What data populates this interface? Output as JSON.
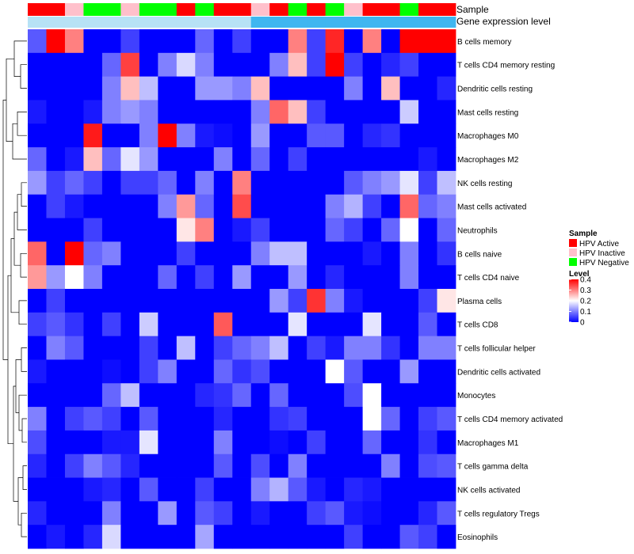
{
  "chart_data": {
    "type": "heatmap",
    "title": "",
    "annotation_labels": {
      "sample": "Sample",
      "gene_expression": "Gene expression level"
    },
    "sample_annotation": [
      "HPV Active",
      "HPV Active",
      "HPV Inactive",
      "HPV Negative",
      "HPV Negative",
      "HPV Inactive",
      "HPV Negative",
      "HPV Negative",
      "HPV Active",
      "HPV Negative",
      "HPV Active",
      "HPV Active",
      "HPV Inactive",
      "HPV Active",
      "HPV Negative",
      "HPV Active",
      "HPV Negative",
      "HPV Inactive",
      "HPV Active",
      "HPV Active",
      "HPV Negative",
      "HPV Active",
      "HPV Active"
    ],
    "gene_expression_annotation": [
      0.0,
      0.0,
      0.0,
      0.0,
      0.0,
      0.0,
      0.0,
      0.0,
      0.0,
      0.0,
      0.0,
      0.0,
      1.0,
      1.0,
      1.0,
      1.0,
      1.0,
      1.0,
      1.0,
      1.0,
      1.0,
      1.0,
      1.0
    ],
    "rows": [
      "B cells memory",
      "T cells CD4 memory resting",
      "Dendritic cells resting",
      "Mast cells resting",
      "Macrophages M0",
      "Macrophages M2",
      "NK cells resting",
      "Mast cells activated",
      "Neutrophils",
      "B cells naive",
      "T cells CD4 naive",
      "Plasma cells",
      "T cells CD8",
      "T cells follicular helper",
      "Dendritic cells activated",
      "Monocytes",
      "T cells CD4 memory activated",
      "Macrophages M1",
      "T cells gamma delta",
      "NK cells activated",
      "T cells regulatory  Tregs",
      "Eosinophils"
    ],
    "values": [
      [
        0.07,
        0.4,
        0.3,
        0.0,
        0.0,
        0.05,
        0.0,
        0.0,
        0.0,
        0.08,
        0.0,
        0.05,
        0.0,
        0.0,
        0.3,
        0.05,
        0.37,
        0.0,
        0.3,
        0.0,
        0.4,
        0.4,
        0.4
      ],
      [
        0.0,
        0.0,
        0.0,
        0.0,
        0.08,
        0.35,
        0.0,
        0.1,
        0.17,
        0.1,
        0.0,
        0.0,
        0.0,
        0.1,
        0.25,
        0.05,
        0.4,
        0.05,
        0.0,
        0.03,
        0.05,
        0.0,
        0.0
      ],
      [
        0.0,
        0.0,
        0.0,
        0.0,
        0.1,
        0.25,
        0.15,
        0.0,
        0.0,
        0.12,
        0.12,
        0.1,
        0.25,
        0.0,
        0.0,
        0.0,
        0.0,
        0.1,
        0.0,
        0.25,
        0.0,
        0.0,
        0.03
      ],
      [
        0.02,
        0.0,
        0.0,
        0.02,
        0.1,
        0.12,
        0.1,
        0.0,
        0.0,
        0.0,
        0.0,
        0.0,
        0.1,
        0.32,
        0.25,
        0.05,
        0.0,
        0.0,
        0.0,
        0.0,
        0.16,
        0.0,
        0.0
      ],
      [
        0.0,
        0.0,
        0.0,
        0.38,
        0.0,
        0.0,
        0.1,
        0.4,
        0.1,
        0.02,
        0.01,
        0.0,
        0.12,
        0.0,
        0.0,
        0.07,
        0.07,
        0.0,
        0.03,
        0.04,
        0.0,
        0.0,
        0.0
      ],
      [
        0.08,
        0.0,
        0.02,
        0.25,
        0.08,
        0.18,
        0.12,
        0.0,
        0.0,
        0.0,
        0.1,
        0.0,
        0.08,
        0.0,
        0.05,
        0.0,
        0.0,
        0.0,
        0.0,
        0.0,
        0.0,
        0.02,
        0.0
      ],
      [
        0.12,
        0.05,
        0.08,
        0.05,
        0.0,
        0.05,
        0.05,
        0.08,
        0.0,
        0.1,
        0.0,
        0.3,
        0.0,
        0.0,
        0.0,
        0.0,
        0.0,
        0.07,
        0.1,
        0.12,
        0.18,
        0.05,
        0.15
      ],
      [
        0.0,
        0.05,
        0.02,
        0.0,
        0.0,
        0.0,
        0.0,
        0.1,
        0.28,
        0.08,
        0.0,
        0.34,
        0.0,
        0.0,
        0.0,
        0.0,
        0.1,
        0.14,
        0.05,
        0.0,
        0.32,
        0.08,
        0.1
      ],
      [
        0.0,
        0.0,
        0.0,
        0.05,
        0.0,
        0.0,
        0.0,
        0.0,
        0.22,
        0.3,
        0.0,
        0.02,
        0.05,
        0.0,
        0.0,
        0.0,
        0.08,
        0.05,
        0.0,
        0.08,
        0.2,
        0.0,
        0.08
      ],
      [
        0.32,
        0.0,
        0.4,
        0.08,
        0.1,
        0.0,
        0.0,
        0.0,
        0.05,
        0.0,
        0.0,
        0.0,
        0.1,
        0.15,
        0.15,
        0.0,
        0.0,
        0.0,
        0.02,
        0.0,
        0.1,
        0.0,
        0.04
      ],
      [
        0.28,
        0.12,
        0.2,
        0.1,
        0.0,
        0.0,
        0.0,
        0.08,
        0.0,
        0.05,
        0.0,
        0.12,
        0.0,
        0.0,
        0.12,
        0.0,
        0.03,
        0.0,
        0.0,
        0.0,
        0.1,
        0.0,
        0.0
      ],
      [
        0.0,
        0.05,
        0.0,
        0.0,
        0.0,
        0.0,
        0.0,
        0.0,
        0.0,
        0.0,
        0.0,
        0.0,
        0.0,
        0.12,
        0.05,
        0.36,
        0.1,
        0.02,
        0.0,
        0.0,
        0.0,
        0.05,
        0.22
      ],
      [
        0.05,
        0.07,
        0.04,
        0.0,
        0.05,
        0.0,
        0.16,
        0.0,
        0.0,
        0.0,
        0.33,
        0.0,
        0.0,
        0.0,
        0.18,
        0.0,
        0.0,
        0.0,
        0.18,
        0.0,
        0.0,
        0.07,
        0.0
      ],
      [
        0.0,
        0.1,
        0.07,
        0.0,
        0.0,
        0.0,
        0.05,
        0.0,
        0.15,
        0.0,
        0.05,
        0.08,
        0.1,
        0.15,
        0.0,
        0.05,
        0.02,
        0.1,
        0.1,
        0.04,
        0.0,
        0.1,
        0.1
      ],
      [
        0.02,
        0.0,
        0.0,
        0.0,
        0.01,
        0.0,
        0.05,
        0.1,
        0.0,
        0.0,
        0.08,
        0.04,
        0.06,
        0.0,
        0.0,
        0.0,
        0.2,
        0.07,
        0.0,
        0.0,
        0.12,
        0.0,
        0.0
      ],
      [
        0.0,
        0.0,
        0.0,
        0.0,
        0.08,
        0.15,
        0.0,
        0.0,
        0.0,
        0.03,
        0.04,
        0.08,
        0.0,
        0.08,
        0.0,
        0.0,
        0.0,
        0.06,
        0.2,
        0.0,
        0.0,
        0.0,
        0.0
      ],
      [
        0.1,
        0.0,
        0.05,
        0.07,
        0.05,
        0.0,
        0.07,
        0.0,
        0.0,
        0.0,
        0.03,
        0.0,
        0.0,
        0.04,
        0.05,
        0.0,
        0.0,
        0.0,
        0.2,
        0.08,
        0.0,
        0.05,
        0.07
      ],
      [
        0.06,
        0.0,
        0.0,
        0.0,
        0.02,
        0.02,
        0.18,
        0.0,
        0.0,
        0.0,
        0.1,
        0.0,
        0.0,
        0.01,
        0.0,
        0.05,
        0.0,
        0.0,
        0.08,
        0.0,
        0.0,
        0.04,
        0.0
      ],
      [
        0.03,
        0.0,
        0.05,
        0.1,
        0.07,
        0.03,
        0.0,
        0.0,
        0.0,
        0.0,
        0.07,
        0.0,
        0.06,
        0.0,
        0.1,
        0.0,
        0.0,
        0.0,
        0.0,
        0.1,
        0.0,
        0.06,
        0.07
      ],
      [
        0.0,
        0.0,
        0.0,
        0.02,
        0.03,
        0.0,
        0.07,
        0.0,
        0.0,
        0.05,
        0.0,
        0.0,
        0.1,
        0.14,
        0.07,
        0.02,
        0.0,
        0.03,
        0.02,
        0.0,
        0.0,
        0.0,
        0.0
      ],
      [
        0.03,
        0.0,
        0.0,
        0.0,
        0.1,
        0.0,
        0.0,
        0.12,
        0.0,
        0.07,
        0.05,
        0.0,
        0.02,
        0.0,
        0.0,
        0.05,
        0.07,
        0.02,
        0.01,
        0.0,
        0.0,
        0.03,
        0.07
      ],
      [
        0.0,
        0.02,
        0.0,
        0.03,
        0.17,
        0.0,
        0.0,
        0.0,
        0.0,
        0.13,
        0.0,
        0.0,
        0.0,
        0.0,
        0.0,
        0.0,
        0.0,
        0.05,
        0.0,
        0.0,
        0.07,
        0.05,
        0.0
      ]
    ],
    "color_scale": {
      "min": 0,
      "max": 0.4,
      "low": "#0000ff",
      "mid": "#ffffff",
      "high": "#ff0000",
      "mid_value": 0.2
    },
    "gene_expression_colors": [
      "#3fb6f0",
      "#b7e2f5"
    ],
    "legend": {
      "placement": "right",
      "sample": {
        "title": "Sample",
        "entries": [
          {
            "label": "HPV Active",
            "color": "#ff0000"
          },
          {
            "label": "HPV Inactive",
            "color": "#ffc0cb"
          },
          {
            "label": "HPV Negative",
            "color": "#00ff00"
          }
        ]
      },
      "level": {
        "title": "Level",
        "ticks": [
          "0.4",
          "0.3",
          "0.2",
          "0.1",
          "0"
        ],
        "tick_values": [
          0.4,
          0.3,
          0.2,
          0.1,
          0
        ]
      }
    }
  }
}
